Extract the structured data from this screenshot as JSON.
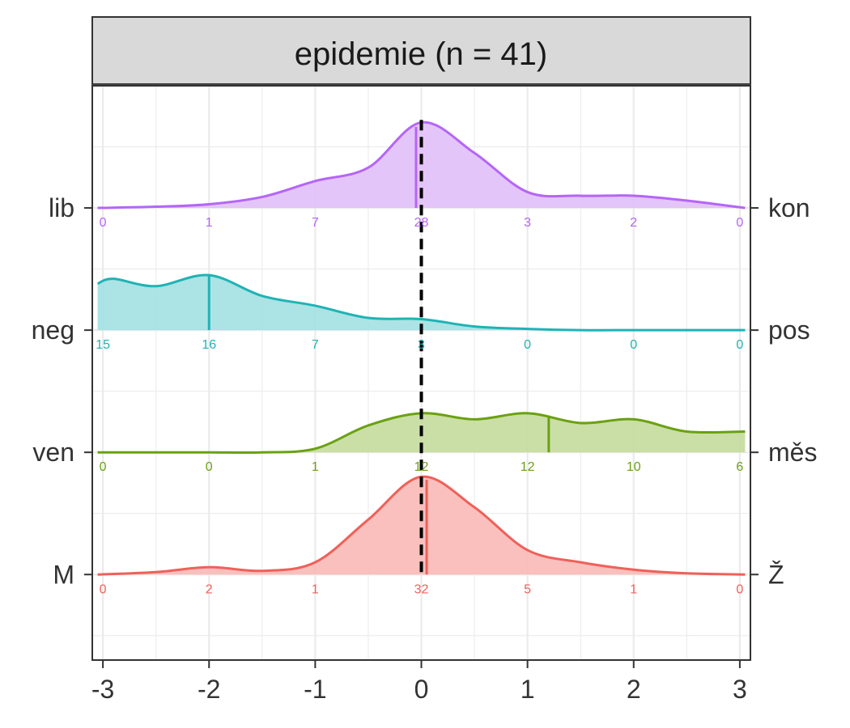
{
  "chart_data": {
    "type": "ridgeline-density",
    "panel_title": "epidemie (n = 41)",
    "x_ticks": [
      -3,
      -2,
      -1,
      0,
      1,
      2,
      3
    ],
    "x_tick_labels": [
      "-3",
      "-2",
      "-1",
      "0",
      "1",
      "2",
      "3"
    ],
    "xlim": [
      -3.1,
      3.1
    ],
    "ylim": [
      -0.7,
      4.0
    ],
    "reference_line_x": 0,
    "count_positions": [
      -3,
      -2,
      -1,
      0,
      1,
      2,
      3
    ],
    "grid": true,
    "series": [
      {
        "id": "gender",
        "left_label": "M",
        "right_label": "Ž",
        "color": "#f0605a",
        "fill": "#f8b9b6",
        "baseline": 0,
        "mean": 0.05,
        "counts": [
          "0",
          "2",
          "1",
          "32",
          "5",
          "1",
          "0"
        ],
        "density": [
          [
            -3.05,
            0.0
          ],
          [
            -2.5,
            0.02
          ],
          [
            -2.0,
            0.06
          ],
          [
            -1.5,
            0.03
          ],
          [
            -1.0,
            0.1
          ],
          [
            -0.5,
            0.45
          ],
          [
            0.0,
            0.8
          ],
          [
            0.5,
            0.55
          ],
          [
            1.0,
            0.2
          ],
          [
            1.5,
            0.1
          ],
          [
            2.0,
            0.04
          ],
          [
            2.5,
            0.01
          ],
          [
            3.05,
            0.0
          ]
        ]
      },
      {
        "id": "place",
        "left_label": "ven",
        "right_label": "měs",
        "color": "#6aa112",
        "fill": "#c4db9c",
        "baseline": 1,
        "mean": 1.2,
        "counts": [
          "0",
          "0",
          "1",
          "12",
          "12",
          "10",
          "6"
        ],
        "density": [
          [
            -3.05,
            0.0
          ],
          [
            -2.5,
            0.0
          ],
          [
            -2.0,
            0.0
          ],
          [
            -1.5,
            0.0
          ],
          [
            -1.0,
            0.03
          ],
          [
            -0.5,
            0.22
          ],
          [
            0.0,
            0.32
          ],
          [
            0.5,
            0.27
          ],
          [
            1.0,
            0.32
          ],
          [
            1.5,
            0.24
          ],
          [
            2.0,
            0.27
          ],
          [
            2.5,
            0.17
          ],
          [
            3.05,
            0.17
          ]
        ]
      },
      {
        "id": "sentiment",
        "left_label": "neg",
        "right_label": "pos",
        "color": "#1fb3b5",
        "fill": "#a3e0e1",
        "baseline": 2,
        "mean": -2.0,
        "counts": [
          "15",
          "16",
          "7",
          "3",
          "0",
          "0",
          "0"
        ],
        "density": [
          [
            -3.05,
            0.38
          ],
          [
            -2.9,
            0.42
          ],
          [
            -2.5,
            0.36
          ],
          [
            -2.0,
            0.45
          ],
          [
            -1.5,
            0.28
          ],
          [
            -1.0,
            0.2
          ],
          [
            -0.5,
            0.1
          ],
          [
            0.0,
            0.09
          ],
          [
            0.5,
            0.03
          ],
          [
            1.0,
            0.01
          ],
          [
            1.5,
            0.0
          ],
          [
            2.0,
            0.0
          ],
          [
            2.5,
            0.0
          ],
          [
            3.05,
            0.0
          ]
        ]
      },
      {
        "id": "politics",
        "left_label": "lib",
        "right_label": "kon",
        "color": "#b565f7",
        "fill": "#e1bff8",
        "baseline": 3,
        "mean": -0.05,
        "counts": [
          "0",
          "1",
          "7",
          "28",
          "3",
          "2",
          "0"
        ],
        "density": [
          [
            -3.05,
            0.0
          ],
          [
            -2.5,
            0.01
          ],
          [
            -2.0,
            0.03
          ],
          [
            -1.5,
            0.09
          ],
          [
            -1.0,
            0.22
          ],
          [
            -0.5,
            0.33
          ],
          [
            0.0,
            0.7
          ],
          [
            0.5,
            0.45
          ],
          [
            1.0,
            0.13
          ],
          [
            1.5,
            0.1
          ],
          [
            2.0,
            0.1
          ],
          [
            2.5,
            0.06
          ],
          [
            3.05,
            0.0
          ]
        ]
      }
    ]
  }
}
